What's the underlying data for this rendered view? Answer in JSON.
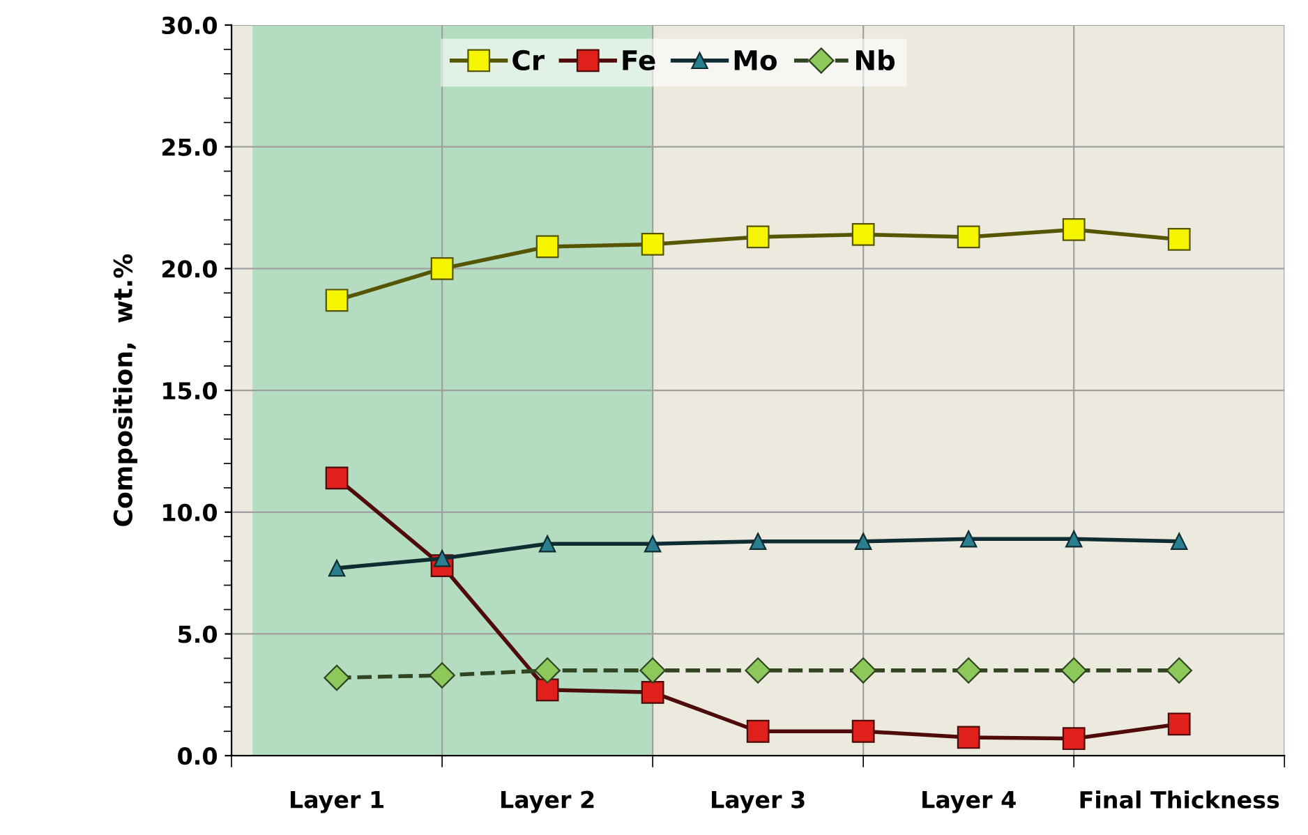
{
  "chart_data": {
    "type": "line",
    "ylabel": "Composition,  wt.%",
    "categories": [
      "Layer 1",
      null,
      "Layer 2",
      null,
      "Layer 3",
      null,
      "Layer 4",
      null,
      "Final Thickness"
    ],
    "series": [
      {
        "name": "Cr",
        "color": "#f5f500",
        "marker": "square",
        "line_style": "solid",
        "values": [
          18.7,
          20.0,
          20.9,
          21.0,
          21.3,
          21.4,
          21.3,
          21.6,
          21.2
        ]
      },
      {
        "name": "Fe",
        "color": "#e0201b",
        "marker": "square",
        "line_style": "solid",
        "values": [
          11.4,
          7.8,
          2.7,
          2.6,
          1.0,
          1.0,
          0.75,
          0.7,
          1.3
        ]
      },
      {
        "name": "Mo",
        "color": "#2a7f8f",
        "marker": "triangle",
        "line_style": "solid",
        "values": [
          7.7,
          8.1,
          8.7,
          8.7,
          8.8,
          8.8,
          8.9,
          8.9,
          8.8
        ]
      },
      {
        "name": "Nb",
        "color": "#8dc85a",
        "marker": "diamond",
        "line_style": "dashed",
        "values": [
          3.2,
          3.3,
          3.5,
          3.5,
          3.5,
          3.5,
          3.5,
          3.5,
          3.5
        ]
      }
    ],
    "ylim": [
      0,
      30
    ],
    "yticks": [
      {
        "value": 0,
        "label": "0.0"
      },
      {
        "value": 5,
        "label": "5.0"
      },
      {
        "value": 10,
        "label": "10.0"
      },
      {
        "value": 15,
        "label": "15.0"
      },
      {
        "value": 20,
        "label": "20.0"
      },
      {
        "value": 25,
        "label": "25.0"
      },
      {
        "value": 30,
        "label": "30.0"
      }
    ],
    "grid": true,
    "legend": "top"
  }
}
